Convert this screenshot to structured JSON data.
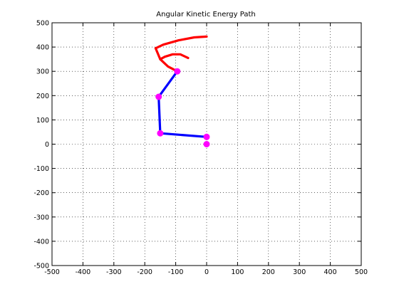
{
  "chart_data": {
    "type": "line",
    "title": "Angular Kinetic Energy Path",
    "xlabel": "",
    "ylabel": "",
    "xlim": [
      -500,
      500
    ],
    "ylim": [
      -500,
      500
    ],
    "xticks": [
      -500,
      -400,
      -300,
      -200,
      -100,
      0,
      100,
      200,
      300,
      400,
      500
    ],
    "yticks": [
      -500,
      -400,
      -300,
      -200,
      -100,
      0,
      100,
      200,
      300,
      400,
      500
    ],
    "xtick_labels": [
      "-500",
      "-400",
      "-300",
      "-200",
      "-100",
      "0",
      "100",
      "200",
      "300",
      "400",
      "500"
    ],
    "ytick_labels": [
      "-500",
      "-400",
      "-300",
      "-200",
      "-100",
      "0",
      "100",
      "200",
      "300",
      "400",
      "500"
    ],
    "grid": true,
    "grid_style": "dotted",
    "series": [
      {
        "color": "#0000ff",
        "style": "line",
        "x": [
          0,
          -150,
          -155,
          -95
        ],
        "y": [
          30,
          45,
          195,
          300
        ]
      },
      {
        "color": "#ff0000",
        "style": "line",
        "x": [
          -95,
          -125,
          -150,
          -135,
          -110,
          -85,
          -60
        ],
        "y": [
          300,
          320,
          350,
          360,
          370,
          370,
          355
        ]
      },
      {
        "color": "#ff0000",
        "style": "line",
        "x": [
          -150,
          -165,
          -140,
          -90,
          -40,
          0
        ],
        "y": [
          350,
          395,
          410,
          428,
          440,
          443
        ]
      },
      {
        "color": "#ff00ff",
        "style": "markers",
        "x": [
          0,
          0,
          -150,
          -155,
          -95
        ],
        "y": [
          0,
          30,
          45,
          195,
          300
        ]
      }
    ]
  }
}
